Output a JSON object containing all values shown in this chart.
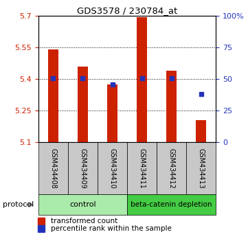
{
  "title": "GDS3578 / 230784_at",
  "samples": [
    "GSM434408",
    "GSM434409",
    "GSM434410",
    "GSM434411",
    "GSM434412",
    "GSM434413"
  ],
  "red_values": [
    5.54,
    5.46,
    5.375,
    5.695,
    5.44,
    5.205
  ],
  "blue_values": [
    5.405,
    5.402,
    5.375,
    5.405,
    5.403,
    5.33
  ],
  "ylim_left": [
    5.1,
    5.7
  ],
  "ylim_right": [
    0,
    100
  ],
  "yticks_left": [
    5.1,
    5.25,
    5.4,
    5.55,
    5.7
  ],
  "yticks_right": [
    0,
    25,
    50,
    75,
    100
  ],
  "ytick_labels_left": [
    "5.1",
    "5.25",
    "5.4",
    "5.55",
    "5.7"
  ],
  "ytick_labels_right": [
    "0",
    "25",
    "50",
    "75",
    "100%"
  ],
  "grid_lines": [
    5.25,
    5.4,
    5.55
  ],
  "bar_width": 0.35,
  "red_color": "#CC2200",
  "blue_color": "#2233BB",
  "bg_color": "#ffffff",
  "left_tick_color": "#CC2200",
  "right_tick_color": "#2233BB",
  "protocol_label": "protocol",
  "legend_red": "transformed count",
  "legend_blue": "percentile rank within the sample",
  "base_value": 5.1,
  "control_color": "#AAEAAA",
  "depletion_color": "#44CC44",
  "label_bg_color": "#C8C8C8"
}
